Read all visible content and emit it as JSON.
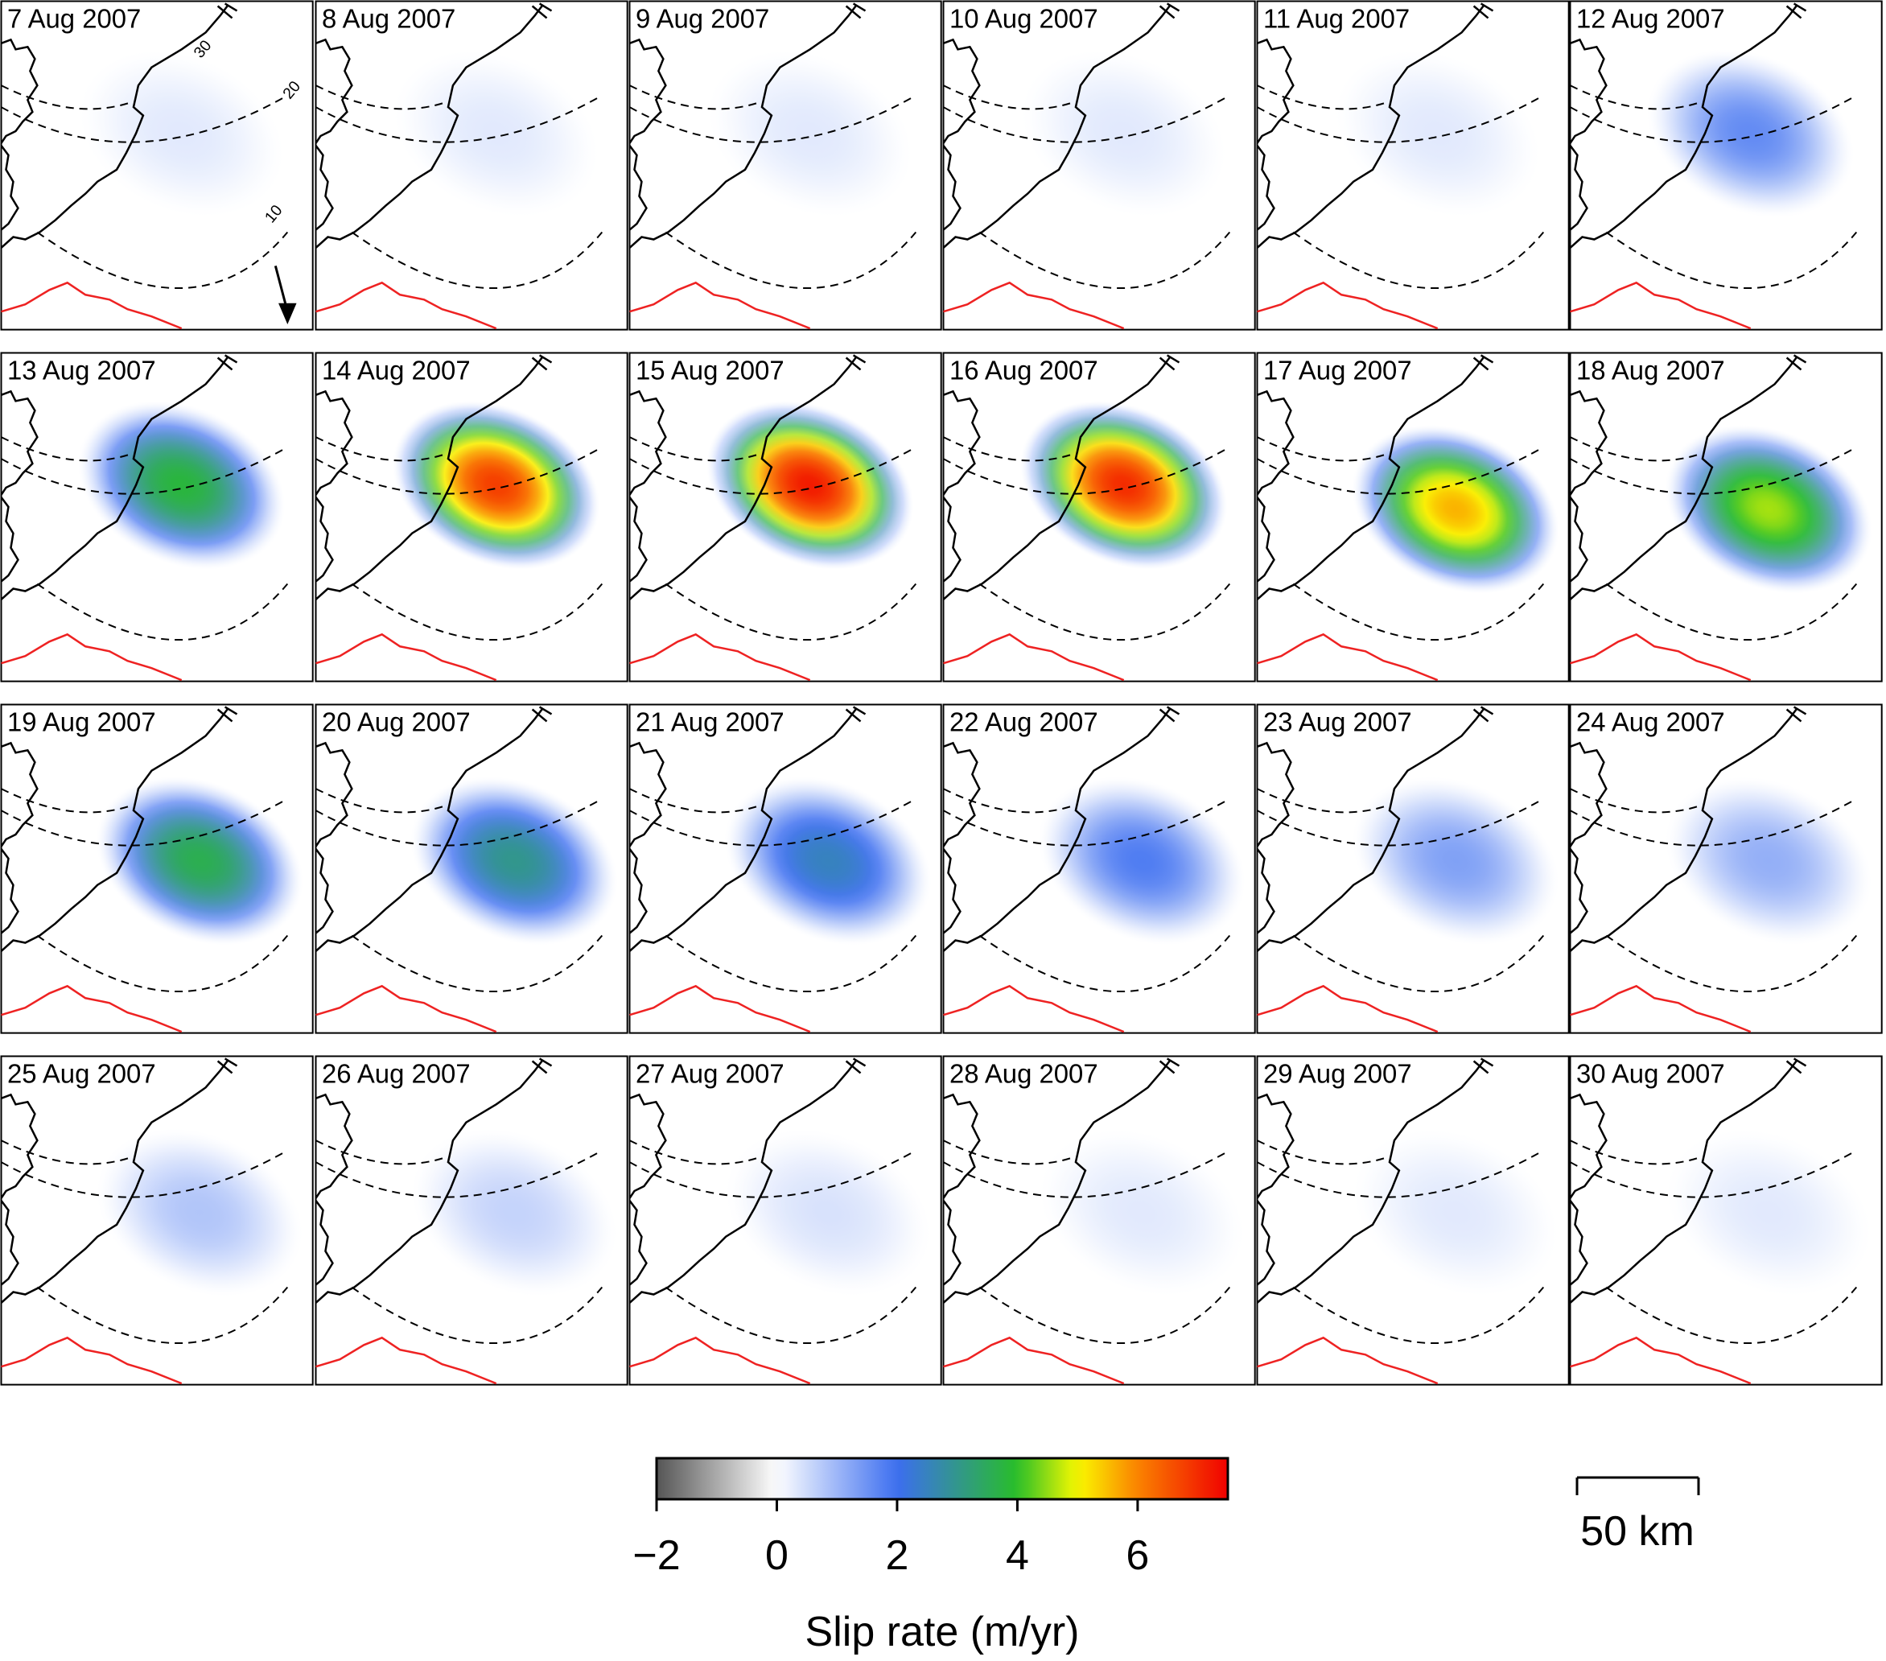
{
  "panels": [
    {
      "date": "7 Aug 2007",
      "slip": 0.3
    },
    {
      "date": "8 Aug 2007",
      "slip": 0.3
    },
    {
      "date": "9 Aug 2007",
      "slip": 0.3
    },
    {
      "date": "10 Aug 2007",
      "slip": 0.3
    },
    {
      "date": "11 Aug 2007",
      "slip": 0.3
    },
    {
      "date": "12 Aug 2007",
      "slip": 1.6
    },
    {
      "date": "13 Aug 2007",
      "slip": 3.8
    },
    {
      "date": "14 Aug 2007",
      "slip": 6.8
    },
    {
      "date": "15 Aug 2007",
      "slip": 7.2
    },
    {
      "date": "16 Aug 2007",
      "slip": 7
    },
    {
      "date": "17 Aug 2007",
      "slip": 5.6
    },
    {
      "date": "18 Aug 2007",
      "slip": 4.6
    },
    {
      "date": "19 Aug 2007",
      "slip": 3.6
    },
    {
      "date": "20 Aug 2007",
      "slip": 3
    },
    {
      "date": "21 Aug 2007",
      "slip": 2.5
    },
    {
      "date": "22 Aug 2007",
      "slip": 1.8
    },
    {
      "date": "23 Aug 2007",
      "slip": 1.3
    },
    {
      "date": "24 Aug 2007",
      "slip": 1.1
    },
    {
      "date": "25 Aug 2007",
      "slip": 0.8
    },
    {
      "date": "26 Aug 2007",
      "slip": 0.6
    },
    {
      "date": "27 Aug 2007",
      "slip": 0.4
    },
    {
      "date": "28 Aug 2007",
      "slip": 0.3
    },
    {
      "date": "29 Aug 2007",
      "slip": 0.3
    },
    {
      "date": "30 Aug 2007",
      "slip": 0.3
    }
  ],
  "contour_labels": [
    "30",
    "20",
    "10"
  ],
  "colorbar": {
    "label": "Slip rate (m/yr)",
    "range": [
      -2,
      7.5
    ],
    "ticks": [
      {
        "value": -2,
        "label": "−2"
      },
      0,
      2,
      4,
      6
    ]
  },
  "scale_bar": {
    "label": "50 km"
  }
}
